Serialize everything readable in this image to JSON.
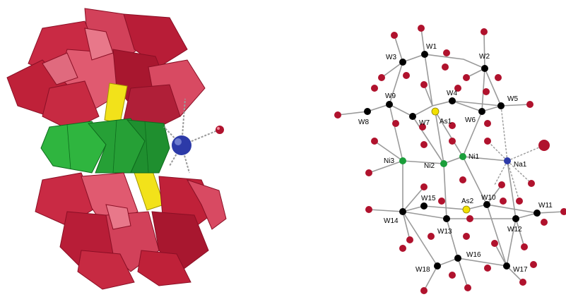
{
  "colors": {
    "tungsten": "#000000",
    "oxygen": "#b0122d",
    "arsenic": "#f2e000",
    "nickel": "#1a9e3a",
    "sodium": "#2c3aa8",
    "bond": "#9a9a9a",
    "polyhedron_tungsten": "#c0213b",
    "polyhedron_nickel": "#2aa53a",
    "polyhedron_arsenic": "#f0e020"
  },
  "polyhedral_view": {
    "icons": [
      "tungsten-octahedra",
      "nickel-octahedra",
      "arsenic-tetrahedra",
      "sodium-sphere",
      "water-oxygen"
    ]
  },
  "ball_stick_view": {
    "labels": {
      "W1": "W1",
      "W2": "W2",
      "W3": "W3",
      "W4": "W4",
      "W5": "W5",
      "W6": "W6",
      "W7": "W7",
      "W8": "W8",
      "W9": "W9",
      "W10": "W10",
      "W11": "W11",
      "W12": "W12",
      "W13": "W13",
      "W14": "W14",
      "W15": "W15",
      "W16": "W16",
      "W17": "W17",
      "W18": "W18",
      "As1": "As1",
      "As2": "As2",
      "Ni1": "Ni1",
      "Ni2": "Ni2",
      "Ni3": "Ni3",
      "Na1": "Na1"
    }
  }
}
